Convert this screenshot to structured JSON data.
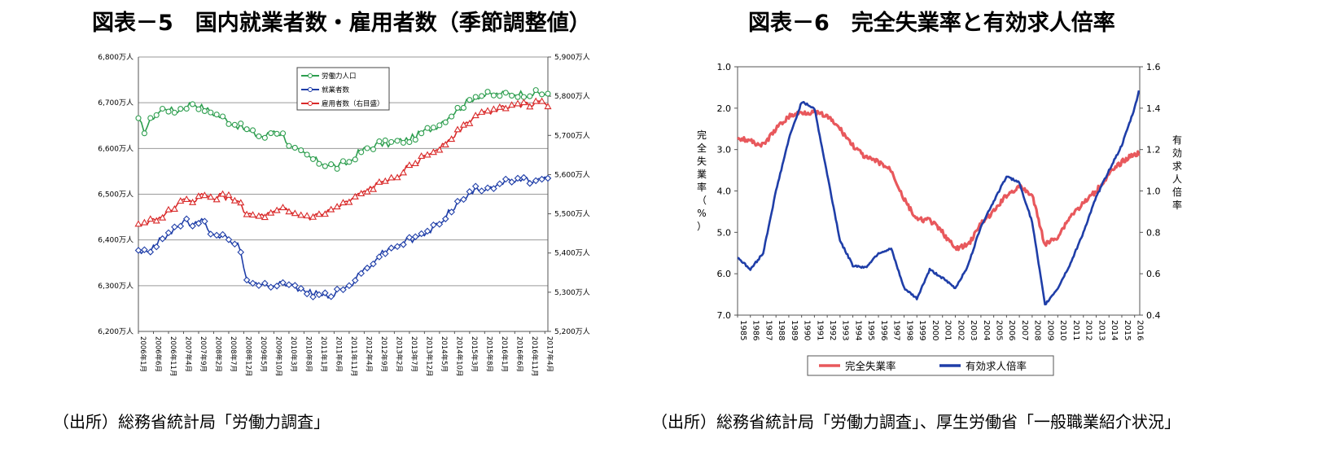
{
  "fig5": {
    "title": "図表－5　国内就業者数・雇用者数（季節調整値）",
    "source": "（出所）総務省統計局「労働力調査」"
  },
  "fig6": {
    "title": "図表－6　完全失業率と有効求人倍率",
    "source": "（出所）総務省統計局「労働力調査」、厚生労働省「一般職業紹介状況」"
  },
  "chart_data": [
    {
      "type": "line",
      "title": "図表－5　国内就業者数・雇用者数（季節調整値）",
      "x_start": "2006-01",
      "x_end": "2017-04",
      "x_tick_labels": [
        "2006年1月",
        "2006年6月",
        "2006年11月",
        "2007年4月",
        "2007年9月",
        "2008年2月",
        "2008年7月",
        "2008年12月",
        "2009年5月",
        "2009年10月",
        "2010年3月",
        "2010年8月",
        "2011年1月",
        "2011年6月",
        "2011年11月",
        "2012年4月",
        "2012年9月",
        "2013年2月",
        "2013年7月",
        "2013年12月",
        "2014年5月",
        "2014年10月",
        "2015年3月",
        "2015年8月",
        "2016年1月",
        "2016年6月",
        "2016年11月",
        "2017年4月"
      ],
      "y_left": {
        "ticks": [
          "6,200万人",
          "6,300万人",
          "6,400万人",
          "6,500万人",
          "6,600万人",
          "6,700万人",
          "6,800万人"
        ],
        "range": [
          6200,
          6800
        ]
      },
      "y_right": {
        "ticks": [
          "5,200万人",
          "5,300万人",
          "5,400万人",
          "5,500万人",
          "5,600万人",
          "5,700万人",
          "5,800万人",
          "5,900万人"
        ],
        "range": [
          5200,
          5900
        ]
      },
      "legend_position": "top-center",
      "grid": true,
      "series": [
        {
          "name": "労働力人口",
          "color": "#2e9e4f",
          "marker": "circle",
          "axis": "left",
          "knots": [
            [
              0,
              6660
            ],
            [
              2,
              6640
            ],
            [
              5,
              6670
            ],
            [
              9,
              6690
            ],
            [
              12,
              6680
            ],
            [
              15,
              6690
            ],
            [
              18,
              6700
            ],
            [
              21,
              6690
            ],
            [
              24,
              6680
            ],
            [
              27,
              6670
            ],
            [
              30,
              6660
            ],
            [
              33,
              6650
            ],
            [
              36,
              6640
            ],
            [
              39,
              6630
            ],
            [
              42,
              6625
            ],
            [
              45,
              6640
            ],
            [
              48,
              6630
            ],
            [
              51,
              6600
            ],
            [
              54,
              6590
            ],
            [
              57,
              6580
            ],
            [
              60,
              6570
            ],
            [
              63,
              6565
            ],
            [
              66,
              6560
            ],
            [
              70,
              6570
            ],
            [
              73,
              6590
            ],
            [
              76,
              6600
            ],
            [
              80,
              6610
            ],
            [
              83,
              6610
            ],
            [
              86,
              6615
            ],
            [
              90,
              6620
            ],
            [
              93,
              6630
            ],
            [
              96,
              6640
            ],
            [
              99,
              6650
            ],
            [
              102,
              6665
            ],
            [
              105,
              6680
            ],
            [
              108,
              6695
            ],
            [
              111,
              6710
            ],
            [
              112,
              6715
            ],
            [
              124,
              6720
            ],
            [
              136,
              6720
            ]
          ]
        },
        {
          "name": "就業者数",
          "color": "#1f3ea8",
          "marker": "diamond",
          "axis": "left",
          "knots": [
            [
              0,
              6380
            ],
            [
              3,
              6370
            ],
            [
              6,
              6390
            ],
            [
              9,
              6410
            ],
            [
              12,
              6425
            ],
            [
              15,
              6440
            ],
            [
              18,
              6435
            ],
            [
              21,
              6440
            ],
            [
              24,
              6420
            ],
            [
              27,
              6410
            ],
            [
              30,
              6400
            ],
            [
              33,
              6390
            ],
            [
              36,
              6320
            ],
            [
              38,
              6300
            ],
            [
              42,
              6300
            ],
            [
              45,
              6305
            ],
            [
              48,
              6310
            ],
            [
              51,
              6300
            ],
            [
              54,
              6290
            ],
            [
              57,
              6285
            ],
            [
              60,
              6280
            ],
            [
              63,
              6280
            ],
            [
              66,
              6285
            ],
            [
              70,
              6300
            ],
            [
              73,
              6320
            ],
            [
              76,
              6340
            ],
            [
              79,
              6360
            ],
            [
              82,
              6375
            ],
            [
              85,
              6385
            ],
            [
              88,
              6395
            ],
            [
              91,
              6400
            ],
            [
              94,
              6410
            ],
            [
              97,
              6420
            ],
            [
              100,
              6440
            ],
            [
              103,
              6460
            ],
            [
              106,
              6480
            ],
            [
              109,
              6495
            ],
            [
              112,
              6510
            ],
            [
              124,
              6530
            ],
            [
              136,
              6530
            ]
          ]
        },
        {
          "name": "雇用者数（右目盛）",
          "color": "#d92a2a",
          "marker": "triangle",
          "axis": "right",
          "knots": [
            [
              0,
              5470
            ],
            [
              3,
              5480
            ],
            [
              6,
              5490
            ],
            [
              9,
              5495
            ],
            [
              12,
              5520
            ],
            [
              15,
              5530
            ],
            [
              18,
              5535
            ],
            [
              21,
              5545
            ],
            [
              24,
              5540
            ],
            [
              27,
              5545
            ],
            [
              30,
              5540
            ],
            [
              33,
              5535
            ],
            [
              36,
              5500
            ],
            [
              39,
              5490
            ],
            [
              42,
              5495
            ],
            [
              45,
              5500
            ],
            [
              48,
              5510
            ],
            [
              51,
              5500
            ],
            [
              54,
              5495
            ],
            [
              57,
              5490
            ],
            [
              60,
              5495
            ],
            [
              63,
              5505
            ],
            [
              66,
              5515
            ],
            [
              70,
              5530
            ],
            [
              73,
              5545
            ],
            [
              76,
              5560
            ],
            [
              80,
              5575
            ],
            [
              83,
              5590
            ],
            [
              86,
              5600
            ],
            [
              90,
              5620
            ],
            [
              93,
              5635
            ],
            [
              96,
              5650
            ],
            [
              100,
              5670
            ],
            [
              103,
              5690
            ],
            [
              106,
              5710
            ],
            [
              109,
              5730
            ],
            [
              112,
              5750
            ],
            [
              124,
              5780
            ],
            [
              136,
              5780
            ]
          ]
        }
      ]
    },
    {
      "type": "line",
      "title": "図表－6　完全失業率と有効求人倍率",
      "x_start": 1985,
      "x_end": 2016.4,
      "x_tick_labels": [
        "1985",
        "1986",
        "1987",
        "1988",
        "1989",
        "1990",
        "1991",
        "1992",
        "1993",
        "1994",
        "1995",
        "1996",
        "1997",
        "1998",
        "1999",
        "2000",
        "2001",
        "2002",
        "2003",
        "2004",
        "2005",
        "2006",
        "2007",
        "2008",
        "2009",
        "2010",
        "2011",
        "2012",
        "2013",
        "2014",
        "2015",
        "2016"
      ],
      "y_left": {
        "label": "完全失業率（%）",
        "ticks": [
          "1.0",
          "2.0",
          "3.0",
          "4.0",
          "5.0",
          "6.0",
          "7.0"
        ],
        "range": [
          7.0,
          1.0
        ],
        "reversed": true
      },
      "y_right": {
        "label": "有効求人倍率",
        "ticks": [
          "0.4",
          "0.6",
          "0.8",
          "1.0",
          "1.2",
          "1.4",
          "1.6"
        ],
        "range": [
          0.4,
          1.6
        ]
      },
      "legend_position": "bottom-center",
      "grid": false,
      "series": [
        {
          "name": "完全失業率",
          "color": "#e8585c",
          "axis": "left",
          "knots": [
            [
              1985,
              2.7
            ],
            [
              1986,
              2.8
            ],
            [
              1987,
              2.9
            ],
            [
              1988,
              2.5
            ],
            [
              1989,
              2.2
            ],
            [
              1990,
              2.1
            ],
            [
              1991,
              2.1
            ],
            [
              1992,
              2.2
            ],
            [
              1993,
              2.5
            ],
            [
              1994,
              2.9
            ],
            [
              1995,
              3.2
            ],
            [
              1996,
              3.3
            ],
            [
              1997,
              3.5
            ],
            [
              1998,
              4.2
            ],
            [
              1999,
              4.7
            ],
            [
              2000,
              4.7
            ],
            [
              2001,
              5.0
            ],
            [
              2002,
              5.4
            ],
            [
              2003,
              5.3
            ],
            [
              2004,
              4.8
            ],
            [
              2005,
              4.5
            ],
            [
              2006,
              4.1
            ],
            [
              2007,
              3.9
            ],
            [
              2008,
              4.1
            ],
            [
              2009,
              5.3
            ],
            [
              2010,
              5.1
            ],
            [
              2011,
              4.6
            ],
            [
              2012,
              4.3
            ],
            [
              2013,
              4.0
            ],
            [
              2014,
              3.6
            ],
            [
              2015,
              3.3
            ],
            [
              2016,
              3.1
            ],
            [
              2016.4,
              3.1
            ]
          ]
        },
        {
          "name": "有効求人倍率",
          "color": "#1f3ea8",
          "axis": "right",
          "knots": [
            [
              1985,
              0.68
            ],
            [
              1986,
              0.62
            ],
            [
              1987,
              0.7
            ],
            [
              1988,
              1.0
            ],
            [
              1989,
              1.25
            ],
            [
              1990,
              1.43
            ],
            [
              1991,
              1.4
            ],
            [
              1992,
              1.08
            ],
            [
              1993,
              0.76
            ],
            [
              1994,
              0.64
            ],
            [
              1995,
              0.63
            ],
            [
              1996,
              0.7
            ],
            [
              1997,
              0.72
            ],
            [
              1998,
              0.53
            ],
            [
              1999,
              0.48
            ],
            [
              2000,
              0.62
            ],
            [
              2001,
              0.58
            ],
            [
              2002,
              0.53
            ],
            [
              2003,
              0.64
            ],
            [
              2004,
              0.83
            ],
            [
              2005,
              0.95
            ],
            [
              2006,
              1.07
            ],
            [
              2007,
              1.04
            ],
            [
              2008,
              0.85
            ],
            [
              2009,
              0.45
            ],
            [
              2010,
              0.53
            ],
            [
              2011,
              0.65
            ],
            [
              2012,
              0.8
            ],
            [
              2013,
              0.97
            ],
            [
              2014,
              1.1
            ],
            [
              2015,
              1.22
            ],
            [
              2016,
              1.4
            ],
            [
              2016.4,
              1.5
            ]
          ]
        }
      ]
    }
  ]
}
